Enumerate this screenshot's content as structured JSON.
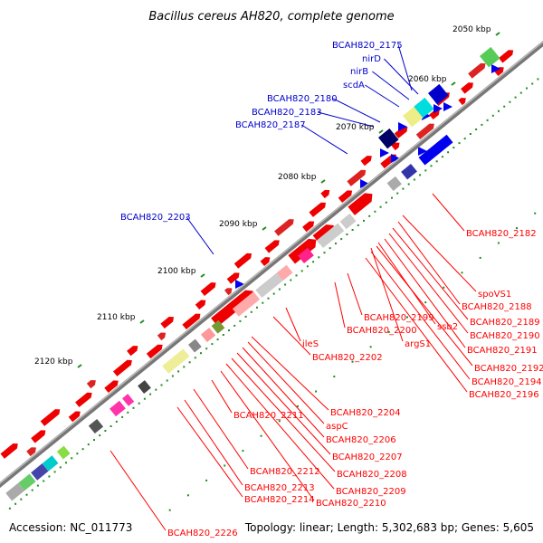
{
  "title": "Bacillus cereus AH820, complete genome",
  "accession": "Accession: NC_011773",
  "summary": "Topology: linear; Length: 5,302,683 bp; Genes: 5,605",
  "colors": {
    "backbone": "#777777",
    "gene_forward": "#ee0000",
    "gene_reverse": "#0000ee",
    "label_top": "#0000cc",
    "label_bottom": "#ff0000",
    "tick": "#228b22"
  },
  "ticks": [
    "2050 kbp",
    "2060 kbp",
    "2070 kbp",
    "2080 kbp",
    "2090 kbp",
    "2100 kbp",
    "2110 kbp",
    "2120 kbp"
  ],
  "top_labels": [
    "BCAH820_2175",
    "nirD",
    "nirB",
    "scdA",
    "BCAH820_2180",
    "BCAH820_2183",
    "BCAH820_2187",
    "BCAH820_2203"
  ],
  "bottom_labels": [
    "BCAH820_2182",
    "spoVS1",
    "BCAH820_2188",
    "BCAH820_2189",
    "BCAH820_2190",
    "BCAH820_2191",
    "BCAH820_2192",
    "BCAH820_2194",
    "BCAH820_2196",
    "ssb2",
    "argS1",
    "BCAH820_2199",
    "BCAH820_2200",
    "ileS",
    "BCAH820_2202",
    "BCAH820_2204",
    "aspC",
    "BCAH820_2206",
    "BCAH820_2207",
    "BCAH820_2208",
    "BCAH820_2209",
    "BCAH820_2210",
    "BCAH820_2211",
    "BCAH820_2212",
    "BCAH820_2213",
    "BCAH820_2214",
    "BCAH820_2226"
  ]
}
